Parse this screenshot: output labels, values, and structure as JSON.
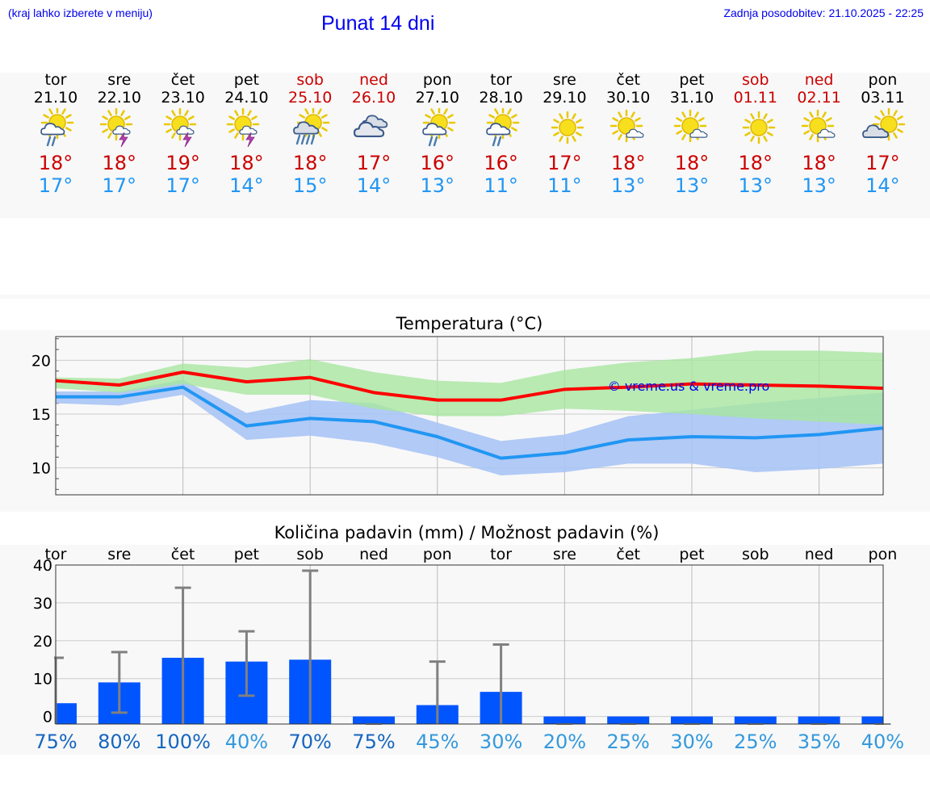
{
  "header": {
    "left_note": "(kraj lahko izberete v meniju)",
    "title": "Punat 14 dni",
    "updated": "Zadnja posodobitev: 21.10.2025 - 22:25"
  },
  "colors": {
    "link": "#0000ee",
    "weekend": "#cc0000",
    "tmax_line": "#ff0000",
    "tmin_line": "#2196f3",
    "tmax_band": "#a8e6a0",
    "tmin_band": "#a9c4f5",
    "bar": "#0055ff",
    "whisker": "#808080"
  },
  "days": [
    {
      "name": "tor",
      "date": "21.10",
      "weekend": false,
      "icon": "sun-cloud-rain-icon",
      "tmax": "18°",
      "tmin": "17°"
    },
    {
      "name": "sre",
      "date": "22.10",
      "weekend": false,
      "icon": "sun-cloud-thunder-icon",
      "tmax": "18°",
      "tmin": "17°"
    },
    {
      "name": "čet",
      "date": "23.10",
      "weekend": false,
      "icon": "sun-cloud-thunder-icon",
      "tmax": "19°",
      "tmin": "17°"
    },
    {
      "name": "pet",
      "date": "24.10",
      "weekend": false,
      "icon": "sun-cloud-thunder-icon",
      "tmax": "18°",
      "tmin": "14°"
    },
    {
      "name": "sob",
      "date": "25.10",
      "weekend": true,
      "icon": "sun-cloud-heavy-rain-icon",
      "tmax": "18°",
      "tmin": "15°"
    },
    {
      "name": "ned",
      "date": "26.10",
      "weekend": true,
      "icon": "cloudy-icon",
      "tmax": "17°",
      "tmin": "14°"
    },
    {
      "name": "pon",
      "date": "27.10",
      "weekend": false,
      "icon": "sun-cloud-rain-icon",
      "tmax": "16°",
      "tmin": "13°"
    },
    {
      "name": "tor",
      "date": "28.10",
      "weekend": false,
      "icon": "sun-cloud-rain-icon",
      "tmax": "16°",
      "tmin": "11°"
    },
    {
      "name": "sre",
      "date": "29.10",
      "weekend": false,
      "icon": "sun-icon",
      "tmax": "17°",
      "tmin": "11°"
    },
    {
      "name": "čet",
      "date": "30.10",
      "weekend": false,
      "icon": "sun-small-cloud-icon",
      "tmax": "18°",
      "tmin": "13°"
    },
    {
      "name": "pet",
      "date": "31.10",
      "weekend": false,
      "icon": "sun-small-cloud-icon",
      "tmax": "18°",
      "tmin": "13°"
    },
    {
      "name": "sob",
      "date": "01.11",
      "weekend": true,
      "icon": "sun-icon",
      "tmax": "18°",
      "tmin": "13°"
    },
    {
      "name": "ned",
      "date": "02.11",
      "weekend": true,
      "icon": "sun-small-cloud-icon",
      "tmax": "18°",
      "tmin": "13°"
    },
    {
      "name": "pon",
      "date": "03.11",
      "weekend": false,
      "icon": "sun-cloud-icon",
      "tmax": "17°",
      "tmin": "14°"
    }
  ],
  "chart_data": [
    {
      "type": "line",
      "title": "Temperatura (°C)",
      "watermark": "© vreme.us & vreme.pro",
      "ylim": [
        7.5,
        22.2
      ],
      "yticks": [
        10,
        15,
        20
      ],
      "grid": true,
      "categories": [
        "21.10",
        "22.10",
        "23.10",
        "24.10",
        "25.10",
        "26.10",
        "27.10",
        "28.10",
        "29.10",
        "30.10",
        "31.10",
        "01.11",
        "02.11",
        "03.11"
      ],
      "series": [
        {
          "role": "tmax",
          "values": [
            18.1,
            17.7,
            18.9,
            18.0,
            18.4,
            17.0,
            16.3,
            16.3,
            17.3,
            17.5,
            17.8,
            17.7,
            17.6,
            17.4
          ],
          "band_low": [
            17.4,
            17.0,
            17.8,
            16.8,
            16.8,
            15.5,
            14.8,
            14.8,
            15.5,
            15.3,
            15.0,
            14.6,
            14.3,
            14.0
          ],
          "band_high": [
            18.4,
            18.3,
            19.7,
            19.3,
            20.1,
            18.9,
            18.1,
            17.9,
            19.1,
            19.8,
            20.2,
            20.9,
            20.9,
            20.7
          ]
        },
        {
          "role": "tmin",
          "values": [
            16.6,
            16.6,
            17.5,
            13.9,
            14.6,
            14.3,
            12.9,
            10.9,
            11.4,
            12.6,
            12.9,
            12.8,
            13.1,
            13.7
          ],
          "band_low": [
            16.0,
            15.8,
            16.8,
            12.6,
            13.0,
            12.3,
            11.0,
            9.3,
            9.6,
            10.4,
            10.4,
            9.6,
            9.9,
            10.4
          ],
          "band_high": [
            17.1,
            17.1,
            18.2,
            15.1,
            16.3,
            16.0,
            14.2,
            12.5,
            13.1,
            14.8,
            15.4,
            16.0,
            16.5,
            17.0
          ]
        }
      ]
    },
    {
      "type": "bar",
      "title": "Količina padavin (mm) / Možnost padavin (%)",
      "ylim": [
        -2,
        40
      ],
      "yticks": [
        0,
        10,
        20,
        30,
        40
      ],
      "grid": true,
      "categories": [
        "tor",
        "sre",
        "čet",
        "pet",
        "sob",
        "ned",
        "pon",
        "tor",
        "sre",
        "čet",
        "pet",
        "sob",
        "ned",
        "pon"
      ],
      "values": [
        3.5,
        9,
        15.5,
        14.5,
        15,
        0,
        3,
        6.5,
        0,
        0,
        0,
        0,
        0,
        0
      ],
      "error_low": [
        0,
        1,
        0,
        5.5,
        0,
        0,
        0,
        0,
        0,
        0,
        0,
        0,
        0,
        0
      ],
      "error_high": [
        15.5,
        17,
        34,
        22.5,
        38.5,
        0,
        14.5,
        19,
        0,
        0,
        0,
        0,
        0,
        0
      ],
      "probability": [
        "75%",
        "80%",
        "100%",
        "40%",
        "70%",
        "75%",
        "45%",
        "30%",
        "20%",
        "25%",
        "30%",
        "25%",
        "35%",
        "40%"
      ],
      "probability_colors": [
        "#1565c0",
        "#1565c0",
        "#1565c0",
        "#3399dd",
        "#1565c0",
        "#1565c0",
        "#3399dd",
        "#3399dd",
        "#3399dd",
        "#3399dd",
        "#3399dd",
        "#3399dd",
        "#3399dd",
        "#3399dd"
      ]
    }
  ]
}
